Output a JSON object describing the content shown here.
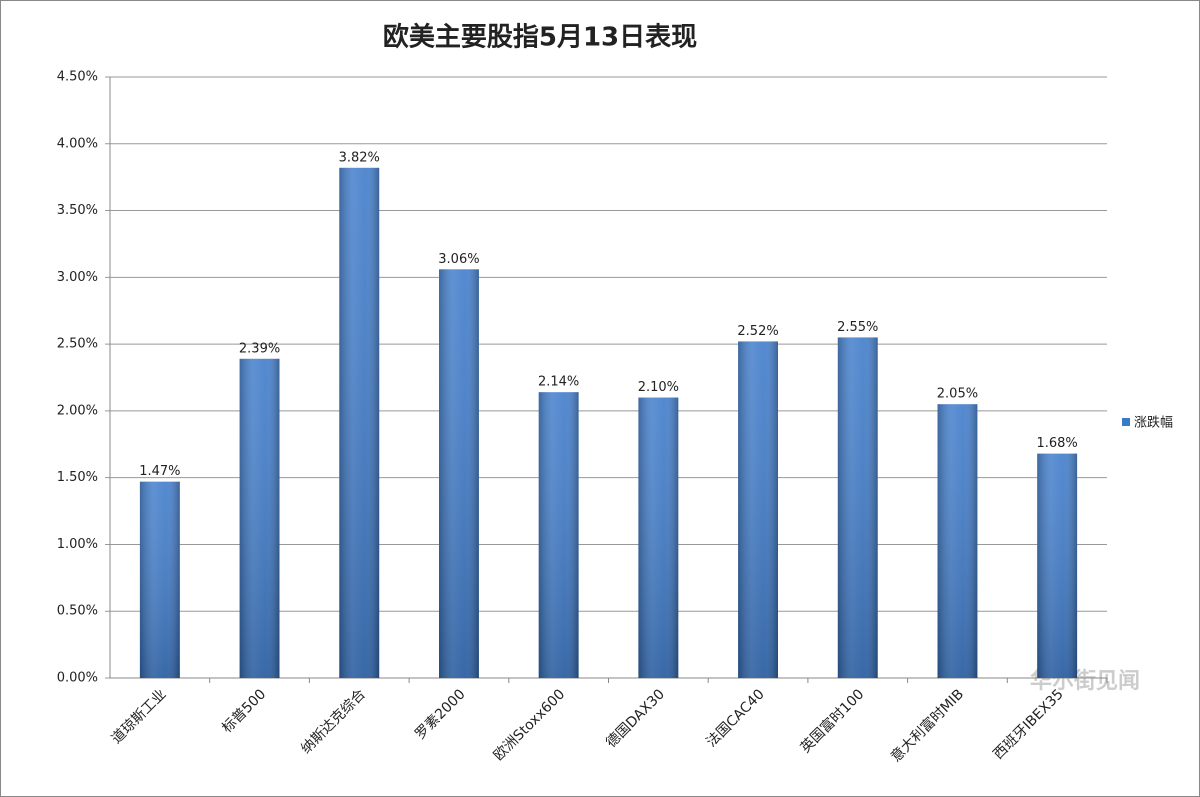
{
  "chart_data": {
    "type": "bar",
    "title": "欧美主要股指5月13日表现",
    "categories": [
      "道琼斯工业",
      "标普500",
      "纳斯达克综合",
      "罗素2000",
      "欧洲Stoxx600",
      "德国DAX30",
      "法国CAC40",
      "英国富时100",
      "意大利富时MIB",
      "西班牙IBEX35"
    ],
    "series": [
      {
        "name": "涨跌幅",
        "color": "#3a78c9",
        "values": [
          1.47,
          2.39,
          3.82,
          3.06,
          2.14,
          2.1,
          2.52,
          2.55,
          2.05,
          1.68
        ],
        "value_labels": [
          "1.47%",
          "2.39%",
          "3.82%",
          "3.06%",
          "2.14%",
          "2.10%",
          "2.52%",
          "2.55%",
          "2.05%",
          "1.68%"
        ]
      }
    ],
    "ylim": [
      0,
      4.5
    ],
    "yticks": [
      {
        "value": 0,
        "label": "0.00%"
      },
      {
        "value": 0.5,
        "label": "0.50%"
      },
      {
        "value": 1,
        "label": "1.00%"
      },
      {
        "value": 1.5,
        "label": "1.50%"
      },
      {
        "value": 2,
        "label": "2.00%"
      },
      {
        "value": 2.5,
        "label": "2.50%"
      },
      {
        "value": 3,
        "label": "3.00%"
      },
      {
        "value": 3.5,
        "label": "3.50%"
      },
      {
        "value": 4,
        "label": "4.00%"
      },
      {
        "value": 4.5,
        "label": "4.50%"
      }
    ],
    "grid": true,
    "legend": "right",
    "watermark": "华尔街见闻"
  }
}
